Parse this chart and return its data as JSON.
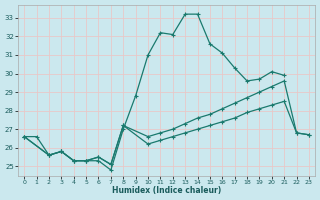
{
  "xlabel": "Humidex (Indice chaleur)",
  "background_color": "#cbe8ee",
  "grid_color": "#e8c8c8",
  "line_color": "#1a7a6e",
  "xlim": [
    -0.5,
    23.5
  ],
  "ylim": [
    24.5,
    33.7
  ],
  "yticks": [
    25,
    26,
    27,
    28,
    29,
    30,
    31,
    32,
    33
  ],
  "xticks": [
    0,
    1,
    2,
    3,
    4,
    5,
    6,
    7,
    8,
    9,
    10,
    11,
    12,
    13,
    14,
    15,
    16,
    17,
    18,
    19,
    20,
    21,
    22,
    23
  ],
  "line1_x": [
    0,
    1,
    2,
    3,
    4,
    5,
    6,
    7,
    8,
    9,
    10,
    11,
    12,
    13,
    14,
    15,
    16,
    17,
    18,
    19,
    20,
    21
  ],
  "line1_y": [
    26.6,
    26.6,
    25.6,
    25.8,
    25.3,
    25.3,
    25.3,
    24.8,
    27.0,
    28.8,
    31.0,
    32.2,
    32.1,
    33.2,
    33.2,
    31.6,
    31.1,
    30.3,
    29.6,
    29.7,
    30.1,
    29.9
  ],
  "line2_x": [
    0,
    2,
    3,
    4,
    5,
    6,
    7,
    8,
    10,
    11,
    12,
    13,
    14,
    15,
    16,
    17,
    18,
    19,
    20,
    21,
    22,
    23
  ],
  "line2_y": [
    26.6,
    25.6,
    25.8,
    25.3,
    25.3,
    25.5,
    25.1,
    27.2,
    26.2,
    26.4,
    26.6,
    26.8,
    27.0,
    27.2,
    27.4,
    27.6,
    27.9,
    28.1,
    28.3,
    28.5,
    26.8,
    26.7
  ],
  "line3_x": [
    0,
    2,
    3,
    4,
    5,
    6,
    7,
    8,
    10,
    11,
    12,
    13,
    14,
    15,
    16,
    17,
    18,
    19,
    20,
    21,
    22,
    23
  ],
  "line3_y": [
    26.6,
    25.6,
    25.8,
    25.3,
    25.3,
    25.5,
    25.1,
    27.2,
    26.6,
    26.8,
    27.0,
    27.3,
    27.6,
    27.8,
    28.1,
    28.4,
    28.7,
    29.0,
    29.3,
    29.6,
    26.8,
    26.7
  ]
}
